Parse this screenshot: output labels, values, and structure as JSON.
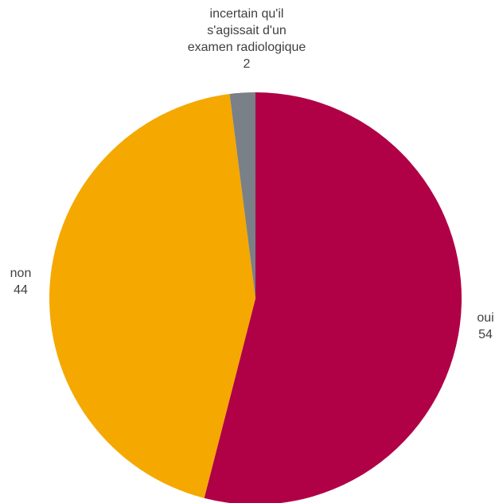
{
  "chart_data": {
    "type": "pie",
    "title": "",
    "start_angle_deg": 0,
    "direction": "clockwise",
    "slices": [
      {
        "label": "oui",
        "label_lines": [
          "oui"
        ],
        "value": 54,
        "value_label": "54",
        "color": "#B00046"
      },
      {
        "label": "non",
        "label_lines": [
          "non"
        ],
        "value": 44,
        "value_label": "44",
        "color": "#F5A800"
      },
      {
        "label": "incertain qu'il s'agissait d'un examen radiologique",
        "label_lines": [
          "incertain qu'il",
          "s'agissait d'un",
          "examen radiologique"
        ],
        "value": 2,
        "value_label": "2",
        "color": "#7A8087"
      }
    ]
  }
}
